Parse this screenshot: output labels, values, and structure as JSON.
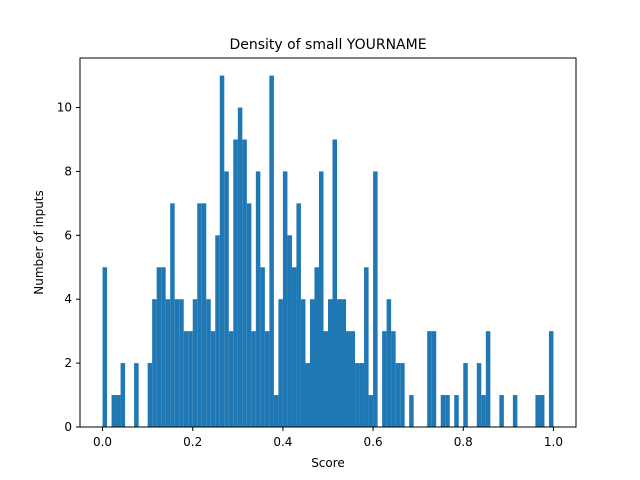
{
  "chart_data": {
    "type": "bar",
    "title": "Density of small YOURNAME",
    "xlabel": "Score",
    "ylabel": "Number of inputs",
    "xlim": [
      -0.05,
      1.05
    ],
    "ylim": [
      0,
      11.55
    ],
    "bin_width": 0.01,
    "grid": false,
    "legend": "none",
    "bar_color": "#1f77b4",
    "x_ticks": [
      0.0,
      0.2,
      0.4,
      0.6,
      0.8,
      1.0
    ],
    "x_tick_labels": [
      "0.0",
      "0.2",
      "0.4",
      "0.6",
      "0.8",
      "1.0"
    ],
    "y_ticks": [
      0,
      2,
      4,
      6,
      8,
      10
    ],
    "y_tick_labels": [
      "0",
      "2",
      "4",
      "6",
      "8",
      "10"
    ],
    "x": [
      0.0,
      0.01,
      0.02,
      0.03,
      0.04,
      0.05,
      0.06,
      0.07,
      0.08,
      0.09,
      0.1,
      0.11,
      0.12,
      0.13,
      0.14,
      0.15,
      0.16,
      0.17,
      0.18,
      0.19,
      0.2,
      0.21,
      0.22,
      0.23,
      0.24,
      0.25,
      0.26,
      0.27,
      0.28,
      0.29,
      0.3,
      0.31,
      0.32,
      0.33,
      0.34,
      0.35,
      0.36,
      0.37,
      0.38,
      0.39,
      0.4,
      0.41,
      0.42,
      0.43,
      0.44,
      0.45,
      0.46,
      0.47,
      0.48,
      0.49,
      0.5,
      0.51,
      0.52,
      0.53,
      0.54,
      0.55,
      0.56,
      0.57,
      0.58,
      0.59,
      0.6,
      0.61,
      0.62,
      0.63,
      0.64,
      0.65,
      0.66,
      0.67,
      0.68,
      0.69,
      0.7,
      0.71,
      0.72,
      0.73,
      0.74,
      0.75,
      0.76,
      0.77,
      0.78,
      0.79,
      0.8,
      0.81,
      0.82,
      0.83,
      0.84,
      0.85,
      0.86,
      0.87,
      0.88,
      0.89,
      0.9,
      0.91,
      0.92,
      0.93,
      0.94,
      0.95,
      0.96,
      0.97,
      0.98,
      0.99
    ],
    "values": [
      5,
      0,
      1,
      1,
      2,
      0,
      0,
      2,
      0,
      0,
      2,
      4,
      5,
      5,
      4,
      7,
      4,
      4,
      3,
      3,
      4,
      7,
      7,
      4,
      3,
      6,
      11,
      8,
      3,
      9,
      10,
      9,
      7,
      3,
      8,
      5,
      3,
      11,
      1,
      4,
      8,
      6,
      5,
      7,
      4,
      2,
      4,
      5,
      8,
      3,
      4,
      9,
      4,
      4,
      3,
      3,
      2,
      2,
      5,
      1,
      8,
      0,
      3,
      4,
      3,
      2,
      2,
      0,
      1,
      0,
      0,
      0,
      3,
      3,
      0,
      1,
      1,
      0,
      1,
      0,
      2,
      0,
      0,
      2,
      1,
      3,
      0,
      0,
      1,
      0,
      0,
      1,
      0,
      0,
      0,
      0,
      1,
      1,
      0,
      3
    ]
  }
}
